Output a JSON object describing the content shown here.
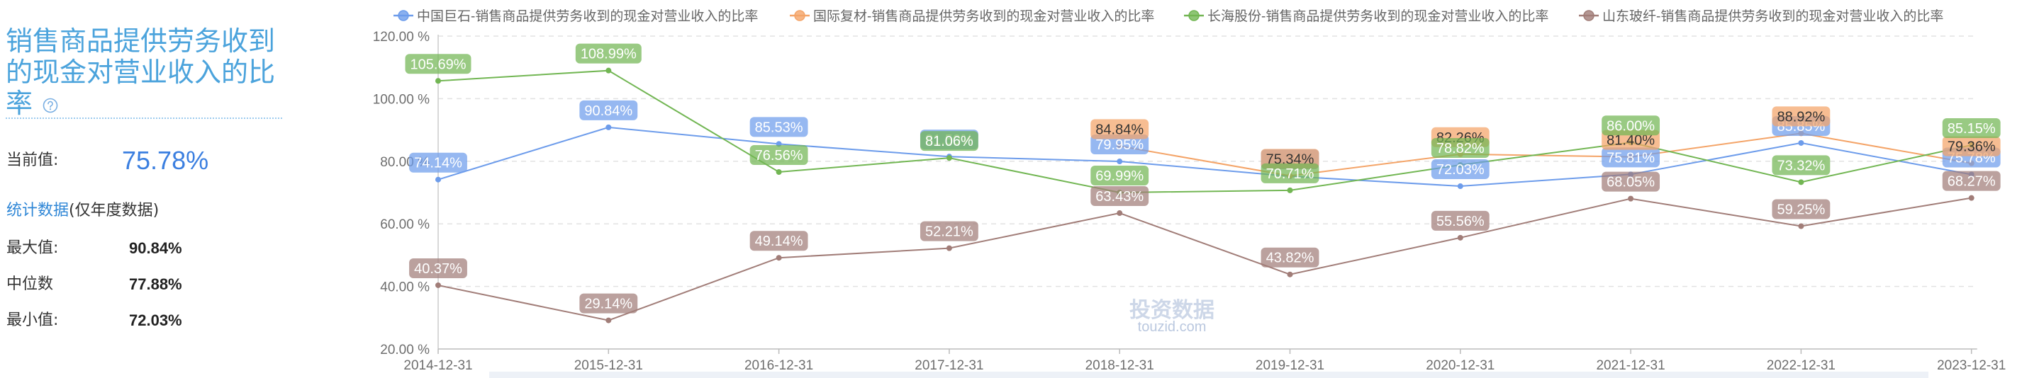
{
  "left_panel": {
    "title": "销售商品提供劳务收到的现金对营业收入的比率",
    "help_icon": "question-circle-icon",
    "current_label": "当前值:",
    "current_value": "75.78%",
    "stats_title": "统计数据",
    "stats_note": "(仅年度数据)",
    "stats": [
      {
        "label": "最大值:",
        "value": "90.84%"
      },
      {
        "label": "中位数",
        "value": "77.88%"
      },
      {
        "label": "最小值:",
        "value": "72.03%"
      }
    ]
  },
  "chart_data": {
    "type": "line",
    "categories": [
      "2014-12-31",
      "2015-12-31",
      "2016-12-31",
      "2017-12-31",
      "2018-12-31",
      "2019-12-31",
      "2020-12-31",
      "2021-12-31",
      "2022-12-31",
      "2023-12-31"
    ],
    "ylim": [
      20,
      120
    ],
    "yticks": [
      20,
      40,
      60,
      80,
      100,
      120
    ],
    "ytick_labels": [
      "20.00 %",
      "40.00 %",
      "60.00 %",
      "80.00 %",
      "100.00 %",
      "120.00 %"
    ],
    "unit": "%",
    "grid": true,
    "data_labels": true,
    "legend_position": "top",
    "series": [
      {
        "name": "中国巨石-销售商品提供劳务收到的现金对营业收入的比率",
        "color": "#6d9ceb",
        "label_text_color": "#ffffff",
        "values": [
          74.14,
          90.84,
          85.53,
          81.5,
          79.95,
          75.2,
          72.03,
          75.81,
          85.85,
          75.78
        ]
      },
      {
        "name": "国际复材-销售商品提供劳务收到的现金对营业收入的比率",
        "color": "#f4a468",
        "label_text_color": "#333333",
        "values": [
          null,
          null,
          null,
          null,
          84.84,
          75.34,
          82.26,
          81.4,
          88.92,
          79.36
        ]
      },
      {
        "name": "长海股份-销售商品提供劳务收到的现金对营业收入的比率",
        "color": "#72b653",
        "label_text_color": "#ffffff",
        "values": [
          105.69,
          108.99,
          76.56,
          81.06,
          69.99,
          70.71,
          78.82,
          86.0,
          73.32,
          85.15
        ]
      },
      {
        "name": "山东玻纤-销售商品提供劳务收到的现金对营业收入的比率",
        "color": "#a17d78",
        "label_text_color": "#ffffff",
        "values": [
          40.37,
          29.14,
          49.14,
          52.21,
          63.43,
          43.82,
          55.56,
          68.05,
          59.25,
          68.27
        ]
      }
    ]
  },
  "watermark": {
    "logo_text": "投资数据",
    "site": "touzid.com"
  }
}
